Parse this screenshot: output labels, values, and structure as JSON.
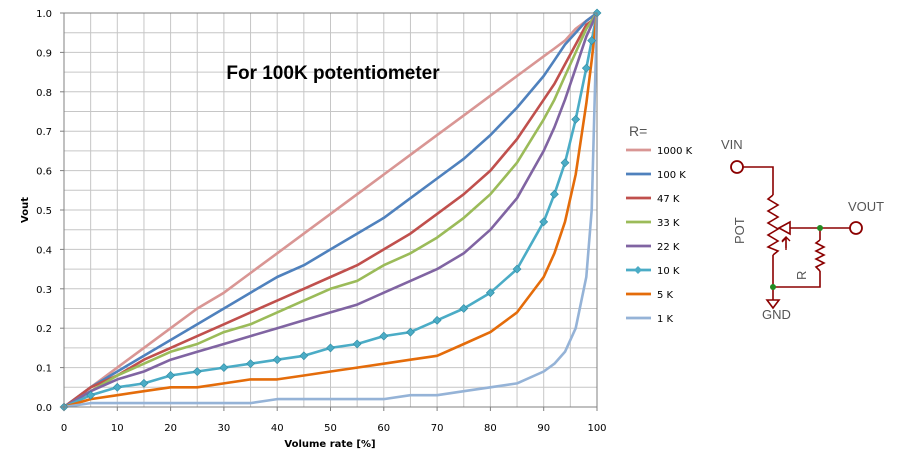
{
  "chart_data": {
    "type": "line",
    "title": "For 100K potentiometer",
    "xlabel": "Volume rate [%]",
    "ylabel": "Vout",
    "xlim": [
      0,
      100
    ],
    "ylim": [
      0,
      1
    ],
    "x_ticks": [
      "0",
      "10",
      "20",
      "30",
      "40",
      "50",
      "60",
      "70",
      "80",
      "90",
      "100"
    ],
    "y_ticks": [
      "0.0",
      "0.1",
      "0.2",
      "0.3",
      "0.4",
      "0.5",
      "0.6",
      "0.7",
      "0.8",
      "0.9",
      "1.0"
    ],
    "grid": true,
    "legend": {
      "title": "R=",
      "placement": "right",
      "entries": [
        "1000 K",
        "100 K",
        "47 K",
        "33 K",
        "22 K",
        "10 K",
        "5 K",
        "1 K"
      ]
    },
    "x": [
      0,
      5,
      10,
      15,
      20,
      25,
      30,
      35,
      40,
      45,
      50,
      55,
      60,
      65,
      70,
      75,
      80,
      85,
      90,
      92,
      94,
      96,
      98,
      99,
      100
    ],
    "series": [
      {
        "name": "1000 K",
        "color": "#d99694",
        "r_ratio": 10,
        "values": [
          0,
          0.05,
          0.1,
          0.15,
          0.2,
          0.25,
          0.29,
          0.34,
          0.39,
          0.44,
          0.49,
          0.54,
          0.59,
          0.64,
          0.69,
          0.74,
          0.79,
          0.84,
          0.89,
          0.91,
          0.93,
          0.96,
          0.98,
          0.99,
          1.0
        ]
      },
      {
        "name": "100 K",
        "color": "#4f81bd",
        "r_ratio": 1,
        "values": [
          0,
          0.05,
          0.09,
          0.13,
          0.17,
          0.21,
          0.25,
          0.29,
          0.33,
          0.36,
          0.4,
          0.44,
          0.48,
          0.53,
          0.58,
          0.63,
          0.69,
          0.76,
          0.84,
          0.88,
          0.92,
          0.95,
          0.98,
          0.99,
          1.0
        ]
      },
      {
        "name": "47 K",
        "color": "#c0504d",
        "r_ratio": 0.47,
        "values": [
          0,
          0.05,
          0.08,
          0.12,
          0.15,
          0.18,
          0.21,
          0.24,
          0.27,
          0.3,
          0.33,
          0.36,
          0.4,
          0.44,
          0.49,
          0.54,
          0.6,
          0.68,
          0.78,
          0.82,
          0.87,
          0.92,
          0.97,
          0.98,
          1.0
        ]
      },
      {
        "name": "33 K",
        "color": "#9bbb59",
        "r_ratio": 0.33,
        "values": [
          0,
          0.04,
          0.08,
          0.11,
          0.14,
          0.16,
          0.19,
          0.21,
          0.24,
          0.27,
          0.3,
          0.32,
          0.36,
          0.39,
          0.43,
          0.48,
          0.54,
          0.62,
          0.73,
          0.78,
          0.84,
          0.9,
          0.96,
          0.98,
          1.0
        ]
      },
      {
        "name": "22 K",
        "color": "#8064a2",
        "r_ratio": 0.22,
        "values": [
          0,
          0.04,
          0.07,
          0.09,
          0.12,
          0.14,
          0.16,
          0.18,
          0.2,
          0.22,
          0.24,
          0.26,
          0.29,
          0.32,
          0.35,
          0.39,
          0.45,
          0.53,
          0.65,
          0.71,
          0.78,
          0.86,
          0.94,
          0.97,
          1.0
        ]
      },
      {
        "name": "10 K",
        "color": "#4bacc6",
        "r_ratio": 0.1,
        "markers": true,
        "values": [
          0,
          0.03,
          0.05,
          0.06,
          0.08,
          0.09,
          0.1,
          0.11,
          0.12,
          0.13,
          0.15,
          0.16,
          0.18,
          0.19,
          0.22,
          0.25,
          0.29,
          0.35,
          0.47,
          0.54,
          0.62,
          0.73,
          0.86,
          0.93,
          1.0
        ]
      },
      {
        "name": "5 K",
        "color": "#e46c0a",
        "r_ratio": 0.05,
        "values": [
          0,
          0.02,
          0.03,
          0.04,
          0.05,
          0.05,
          0.06,
          0.07,
          0.07,
          0.08,
          0.09,
          0.1,
          0.11,
          0.12,
          0.13,
          0.16,
          0.19,
          0.24,
          0.33,
          0.39,
          0.47,
          0.59,
          0.77,
          0.88,
          1.0
        ]
      },
      {
        "name": "1 K",
        "color": "#95b3d7",
        "r_ratio": 0.01,
        "values": [
          0,
          0.01,
          0.01,
          0.01,
          0.01,
          0.01,
          0.01,
          0.01,
          0.02,
          0.02,
          0.02,
          0.02,
          0.02,
          0.03,
          0.03,
          0.04,
          0.05,
          0.06,
          0.09,
          0.11,
          0.14,
          0.2,
          0.33,
          0.5,
          1.0
        ]
      }
    ]
  },
  "schematic": {
    "vin": "VIN",
    "vout": "VOUT",
    "pot": "POT",
    "r": "R",
    "gnd": "GND"
  }
}
